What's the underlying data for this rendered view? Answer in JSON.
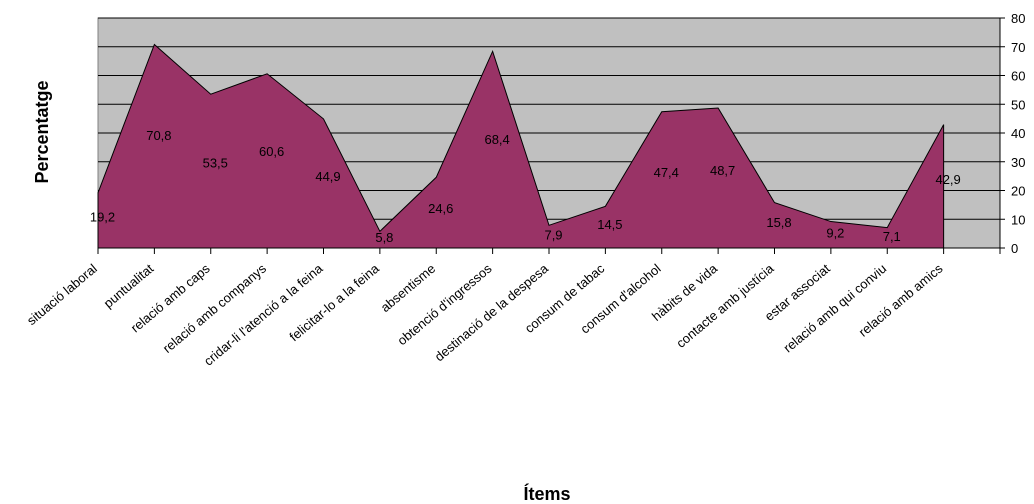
{
  "chart_data": {
    "type": "area",
    "xlabel": "Ítems",
    "ylabel": "Percentatge",
    "ylim": [
      0,
      80
    ],
    "yticks": [
      0,
      10,
      20,
      30,
      40,
      50,
      60,
      70,
      80
    ],
    "grid": true,
    "categories": [
      "situació laboral",
      "puntualitat",
      "relació amb caps",
      "relació amb companys",
      "cridar-li l'atenció a la feina",
      "felicitar-lo a la feina",
      "absentisme",
      "obtenció d'ingressos",
      "destinació de la despesa",
      "consum de tabac",
      "consum d'alcohol",
      "hàbits de vida",
      "contacte amb justícia",
      "estar associat",
      "relació amb qui conviu",
      "relació amb amics"
    ],
    "values": [
      19.2,
      70.8,
      53.5,
      60.6,
      44.9,
      5.8,
      24.6,
      68.4,
      7.9,
      14.5,
      47.4,
      48.7,
      15.8,
      9.2,
      7.1,
      42.9
    ],
    "value_labels": [
      "19,2",
      "70,8",
      "53,5",
      "60,6",
      "44,9",
      "5,8",
      "24,6",
      "68,4",
      "7,9",
      "14,5",
      "47,4",
      "48,7",
      "15,8",
      "9,2",
      "7,1",
      "42,9"
    ],
    "colors": {
      "area_fill": "#993366",
      "plot_background": "#c0c0c0",
      "gridline": "#000000"
    }
  }
}
